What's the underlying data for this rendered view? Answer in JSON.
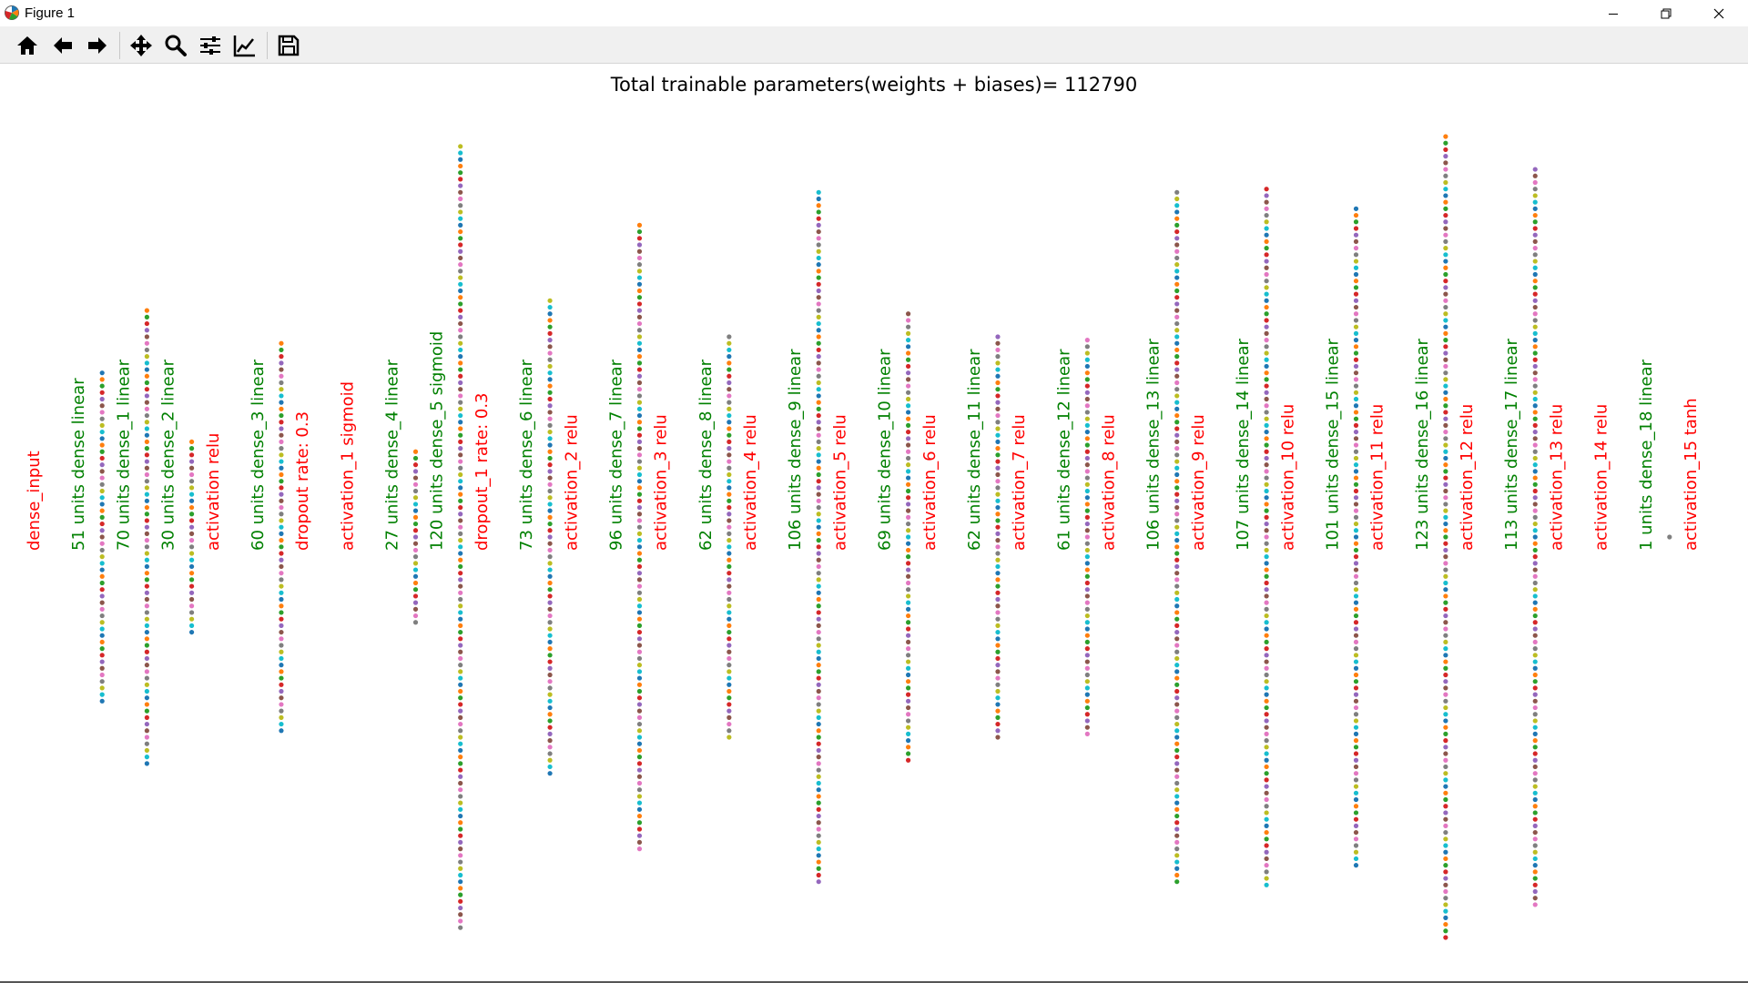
{
  "window": {
    "title": "Figure 1",
    "app_icon": "matplotlib-logo-icon",
    "controls": [
      "minimize-icon",
      "restore-icon",
      "close-icon"
    ]
  },
  "toolbar": {
    "buttons": [
      "home-icon",
      "back-arrow-icon",
      "forward-arrow-icon",
      "pan-move-icon",
      "zoom-magnifier-icon",
      "subplot-config-icon",
      "edit-axis-curves-icon",
      "save-floppy-icon"
    ]
  },
  "chart_data": {
    "type": "scatter",
    "title": "Total trainable parameters(weights + biases)= 112790",
    "label_colors": {
      "dense": "#008000",
      "other": "#ff0000"
    },
    "marker_colors": [
      "#1f77b4",
      "#ff7f0e",
      "#2ca02c",
      "#d62728",
      "#9467bd",
      "#8c564b",
      "#e377c2",
      "#7f7f7f",
      "#bcbd22",
      "#17becf"
    ],
    "layers": [
      {
        "label": "dense_input",
        "kind": "other",
        "units": 0
      },
      {
        "label": "51 units  dense  linear",
        "kind": "dense",
        "units": 51
      },
      {
        "label": "70 units  dense_1  linear",
        "kind": "dense",
        "units": 70
      },
      {
        "label": "30 units  dense_2  linear",
        "kind": "dense",
        "units": 30
      },
      {
        "label": "activation relu",
        "kind": "other",
        "units": 0
      },
      {
        "label": "60 units  dense_3  linear",
        "kind": "dense",
        "units": 60
      },
      {
        "label": "dropout rate: 0.3",
        "kind": "other",
        "units": 0
      },
      {
        "label": "activation_1 sigmoid",
        "kind": "other",
        "units": 0
      },
      {
        "label": "27 units  dense_4  linear",
        "kind": "dense",
        "units": 27
      },
      {
        "label": "120 units  dense_5  sigmoid",
        "kind": "dense",
        "units": 120
      },
      {
        "label": "dropout_1 rate: 0.3",
        "kind": "other",
        "units": 0
      },
      {
        "label": "73 units  dense_6  linear",
        "kind": "dense",
        "units": 73
      },
      {
        "label": "activation_2 relu",
        "kind": "other",
        "units": 0
      },
      {
        "label": "96 units  dense_7  linear",
        "kind": "dense",
        "units": 96
      },
      {
        "label": "activation_3 relu",
        "kind": "other",
        "units": 0
      },
      {
        "label": "62 units  dense_8  linear",
        "kind": "dense",
        "units": 62
      },
      {
        "label": "activation_4 relu",
        "kind": "other",
        "units": 0
      },
      {
        "label": "106 units  dense_9  linear",
        "kind": "dense",
        "units": 106
      },
      {
        "label": "activation_5 relu",
        "kind": "other",
        "units": 0
      },
      {
        "label": "69 units  dense_10  linear",
        "kind": "dense",
        "units": 69
      },
      {
        "label": "activation_6 relu",
        "kind": "other",
        "units": 0
      },
      {
        "label": "62 units  dense_11  linear",
        "kind": "dense",
        "units": 62
      },
      {
        "label": "activation_7 relu",
        "kind": "other",
        "units": 0
      },
      {
        "label": "61 units  dense_12  linear",
        "kind": "dense",
        "units": 61
      },
      {
        "label": "activation_8 relu",
        "kind": "other",
        "units": 0
      },
      {
        "label": "106 units  dense_13  linear",
        "kind": "dense",
        "units": 106
      },
      {
        "label": "activation_9 relu",
        "kind": "other",
        "units": 0
      },
      {
        "label": "107 units  dense_14  linear",
        "kind": "dense",
        "units": 107
      },
      {
        "label": "activation_10 relu",
        "kind": "other",
        "units": 0
      },
      {
        "label": "101 units  dense_15  linear",
        "kind": "dense",
        "units": 101
      },
      {
        "label": "activation_11 relu",
        "kind": "other",
        "units": 0
      },
      {
        "label": "123 units  dense_16  linear",
        "kind": "dense",
        "units": 123
      },
      {
        "label": "activation_12 relu",
        "kind": "other",
        "units": 0
      },
      {
        "label": "113 units  dense_17  linear",
        "kind": "dense",
        "units": 113
      },
      {
        "label": "activation_13 relu",
        "kind": "other",
        "units": 0
      },
      {
        "label": "activation_14 relu",
        "kind": "other",
        "units": 0
      },
      {
        "label": "1 units  dense_18  linear",
        "kind": "dense",
        "units": 1
      },
      {
        "label": "activation_15 tanh",
        "kind": "other",
        "units": 0
      }
    ]
  }
}
